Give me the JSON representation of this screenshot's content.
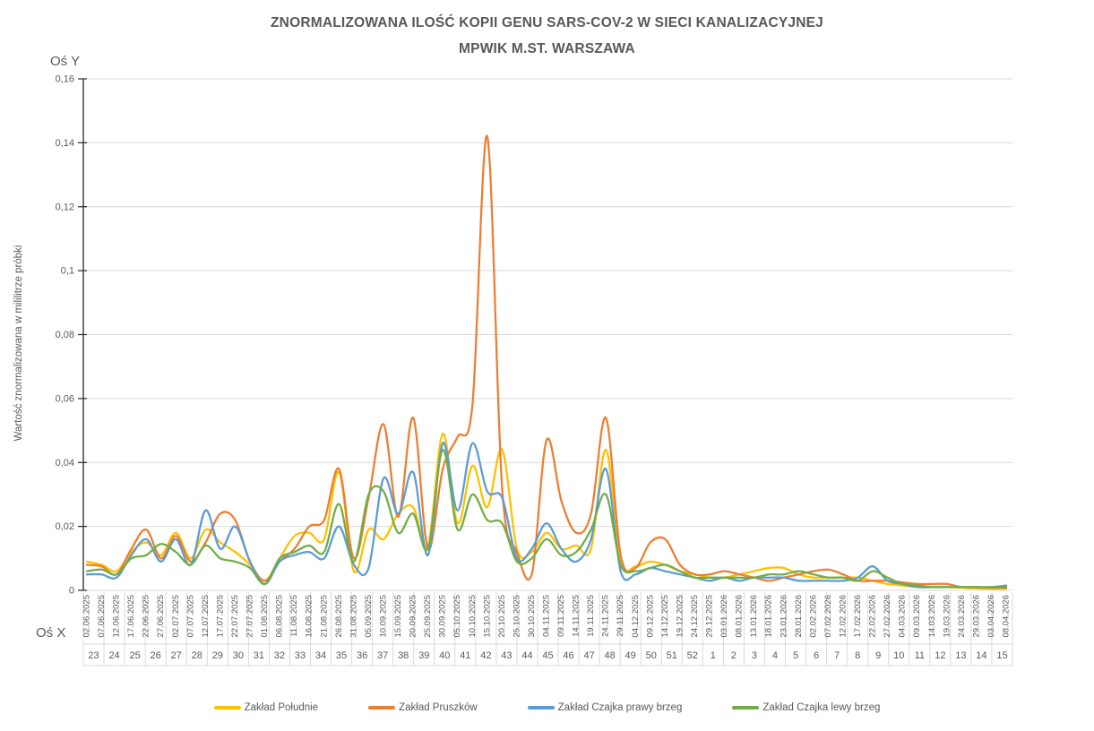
{
  "header": {
    "line1": "ZNORMALIZOWANA ILOŚĆ KOPII GENU SARS-COV-2 W SIECI KANALIZACYJNEJ",
    "line2": "MPWIK M.ST. WARSZAWA"
  },
  "axes": {
    "y_axis_label": "Oś Y",
    "x_axis_label": "Oś X",
    "y_title": "Wartość znormalizowana  w mililitrze próbki",
    "y_ticks": [
      "0",
      "0,02",
      "0,04",
      "0,06",
      "0,08",
      "0,1",
      "0,12",
      "0,14",
      "0,16"
    ]
  },
  "colors": {
    "text_gray": "#595959",
    "gridline": "#D9D9D9",
    "axis_line": "#262626"
  },
  "chart_data": {
    "type": "line",
    "title": "ZNORMALIZOWANA ILOŚĆ KOPII GENU SARS-COV-2 W SIECI KANALIZACYJNEJ MPWIK M.ST. WARSZAWA",
    "xlabel": "Oś X",
    "ylabel": "Wartość znormalizowana  w mililitrze próbki",
    "ylim": [
      0,
      0.16
    ],
    "y_tick_step": 0.02,
    "grid": true,
    "legend_position": "bottom",
    "x_dates": [
      "02.06.2025",
      "07.06.2025",
      "12.06.2025",
      "17.06.2025",
      "22.06.2025",
      "27.06.2025",
      "02.07.2025",
      "07.07.2025",
      "12.07.2025",
      "17.07.2025",
      "22.07.2025",
      "27.07.2025",
      "01.08.2025",
      "06.08.2025",
      "11.08.2025",
      "16.08.2025",
      "21.08.2025",
      "26.08.2025",
      "31.08.2025",
      "05.09.2025",
      "10.09.2025",
      "15.09.2025",
      "20.09.2025",
      "25.09.2025",
      "30.09.2025",
      "05.10.2025",
      "10.10.2025",
      "15.10.2025",
      "20.10.2025",
      "25.10.2025",
      "30.10.2025",
      "04.11.2025",
      "09.11.2025",
      "14.11.2025",
      "19.11.2025",
      "24.11.2025",
      "29.11.2025",
      "04.12.2025",
      "09.12.2025",
      "14.12.2025",
      "19.12.2025",
      "24.12.2025",
      "29.12.2025",
      "03.01.2026",
      "08.01.2026",
      "13.01.2026",
      "18.01.2026",
      "23.01.2026",
      "28.01.2026",
      "02.02.2026",
      "07.02.2026",
      "12.02.2026",
      "17.02.2026",
      "22.02.2026",
      "27.02.2026",
      "04.03.2026",
      "09.03.2026",
      "14.03.2026",
      "19.03.2026",
      "24.03.2026",
      "29.03.2026",
      "03.04.2026",
      "08.04.2026"
    ],
    "x_weeks": [
      "23",
      "24",
      "25",
      "26",
      "27",
      "28",
      "29",
      "30",
      "31",
      "32",
      "33",
      "34",
      "35",
      "36",
      "37",
      "38",
      "39",
      "40",
      "41",
      "42",
      "43",
      "44",
      "45",
      "46",
      "47",
      "48",
      "49",
      "50",
      "51",
      "52",
      "1",
      "2",
      "3",
      "4",
      "5",
      "6",
      "7",
      "8",
      "9",
      "10",
      "11",
      "12",
      "13",
      "14",
      "15"
    ],
    "series": [
      {
        "name": "Zakład Południe",
        "color": "#FFC000",
        "values": [
          0.009,
          0.008,
          0.006,
          0.012,
          0.015,
          0.011,
          0.018,
          0.01,
          0.019,
          0.015,
          0.012,
          0.008,
          0.003,
          0.01,
          0.017,
          0.018,
          0.016,
          0.037,
          0.006,
          0.019,
          0.016,
          0.024,
          0.026,
          0.014,
          0.049,
          0.021,
          0.039,
          0.026,
          0.044,
          0.013,
          0.012,
          0.018,
          0.013,
          0.014,
          0.013,
          0.044,
          0.009,
          0.0075,
          0.009,
          0.008,
          0.006,
          0.005,
          0.004,
          0.004,
          0.005,
          0.006,
          0.007,
          0.007,
          0.005,
          0.004,
          0.004,
          0.004,
          0.004,
          0.003,
          0.002,
          0.0015,
          0.001,
          0.001,
          0.001,
          0.0008,
          0.0006,
          0.0005,
          0.0005
        ]
      },
      {
        "name": "Zakład Pruszków",
        "color": "#ED7D31",
        "values": [
          0.008,
          0.0075,
          0.005,
          0.013,
          0.019,
          0.01,
          0.017,
          0.009,
          0.015,
          0.024,
          0.022,
          0.009,
          0.003,
          0.009,
          0.013,
          0.02,
          0.022,
          0.038,
          0.01,
          0.029,
          0.052,
          0.023,
          0.054,
          0.013,
          0.038,
          0.048,
          0.058,
          0.142,
          0.032,
          0.012,
          0.005,
          0.047,
          0.028,
          0.018,
          0.024,
          0.054,
          0.011,
          0.007,
          0.015,
          0.016,
          0.008,
          0.005,
          0.005,
          0.006,
          0.005,
          0.004,
          0.003,
          0.004,
          0.005,
          0.006,
          0.0065,
          0.005,
          0.003,
          0.003,
          0.003,
          0.0025,
          0.002,
          0.002,
          0.002,
          0.001,
          0.001,
          0.0008,
          0.0008
        ]
      },
      {
        "name": "Zakład Czajka prawy brzeg",
        "color": "#5B9BD5",
        "values": [
          0.005,
          0.005,
          0.004,
          0.011,
          0.016,
          0.009,
          0.016,
          0.008,
          0.025,
          0.013,
          0.02,
          0.009,
          0.002,
          0.009,
          0.011,
          0.012,
          0.01,
          0.02,
          0.008,
          0.007,
          0.035,
          0.024,
          0.037,
          0.011,
          0.046,
          0.025,
          0.046,
          0.031,
          0.029,
          0.01,
          0.013,
          0.021,
          0.013,
          0.009,
          0.016,
          0.038,
          0.006,
          0.005,
          0.007,
          0.006,
          0.005,
          0.004,
          0.003,
          0.004,
          0.003,
          0.004,
          0.004,
          0.004,
          0.003,
          0.003,
          0.003,
          0.003,
          0.004,
          0.0075,
          0.003,
          0.002,
          0.001,
          0.001,
          0.001,
          0.001,
          0.001,
          0.001,
          0.0015
        ]
      },
      {
        "name": "Zakład Czajka lewy brzeg",
        "color": "#70AD47",
        "values": [
          0.006,
          0.0065,
          0.005,
          0.01,
          0.011,
          0.0145,
          0.012,
          0.008,
          0.014,
          0.01,
          0.009,
          0.007,
          0.002,
          0.01,
          0.012,
          0.014,
          0.012,
          0.027,
          0.009,
          0.03,
          0.031,
          0.018,
          0.024,
          0.013,
          0.044,
          0.019,
          0.03,
          0.022,
          0.021,
          0.009,
          0.01,
          0.016,
          0.011,
          0.012,
          0.019,
          0.03,
          0.008,
          0.006,
          0.007,
          0.008,
          0.006,
          0.004,
          0.004,
          0.004,
          0.004,
          0.004,
          0.005,
          0.005,
          0.006,
          0.005,
          0.004,
          0.004,
          0.003,
          0.006,
          0.004,
          0.002,
          0.0015,
          0.001,
          0.001,
          0.001,
          0.001,
          0.001,
          0.001
        ]
      }
    ]
  }
}
